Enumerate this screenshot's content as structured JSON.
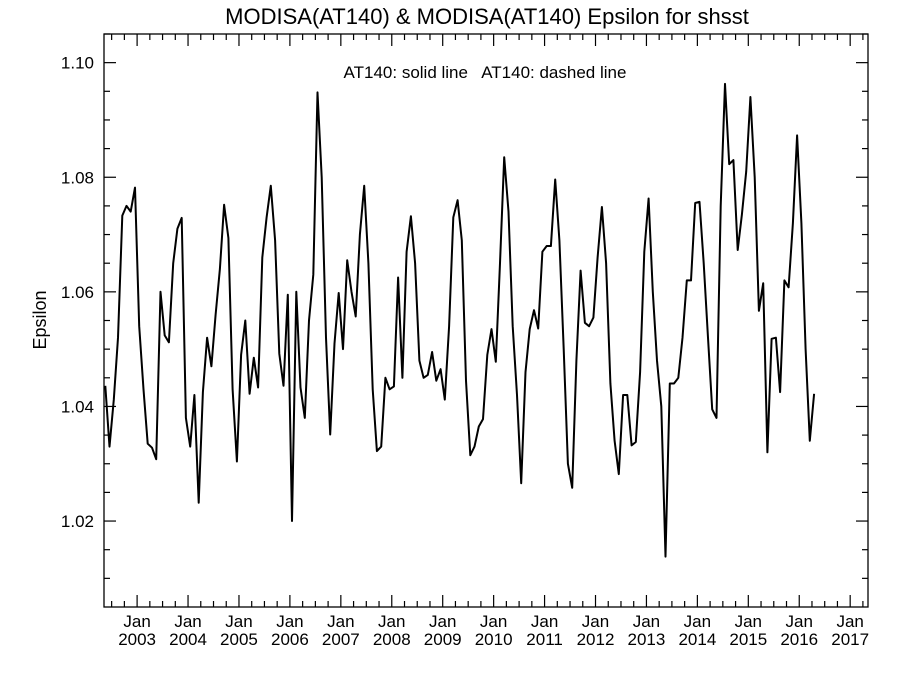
{
  "chart_data": {
    "type": "line",
    "title": "MODISA(AT140) & MODISA(AT140)  Epsilon for shsst",
    "xlabel": "",
    "ylabel": "Epsilon",
    "annotation": "AT140: solid line   AT140: dashed line",
    "xlim": [
      2002.35,
      2017.35
    ],
    "ylim": [
      1.005,
      1.105
    ],
    "yticks": [
      1.02,
      1.04,
      1.06,
      1.08,
      1.1
    ],
    "ytick_labels": [
      "1.02",
      "1.04",
      "1.06",
      "1.08",
      "1.10"
    ],
    "xticks": [
      2003,
      2004,
      2005,
      2006,
      2007,
      2008,
      2009,
      2010,
      2011,
      2012,
      2013,
      2014,
      2015,
      2016,
      2017
    ],
    "xtick_month_label": "Jan",
    "xtick_year_labels": [
      "2003",
      "2004",
      "2005",
      "2006",
      "2007",
      "2008",
      "2009",
      "2010",
      "2011",
      "2012",
      "2013",
      "2014",
      "2015",
      "2016",
      "2017"
    ],
    "grid": false,
    "series": [
      {
        "style": "solid",
        "x_start": 2002.375,
        "x_step": 0.083333,
        "values": [
          1.0436,
          1.033,
          1.0412,
          1.052,
          1.0733,
          1.075,
          1.074,
          1.0782,
          1.054,
          1.043,
          1.0335,
          1.0328,
          1.0308,
          1.06,
          1.0524,
          1.0512,
          1.065,
          1.071,
          1.0729,
          1.038,
          1.033,
          1.042,
          1.0232,
          1.0425,
          1.052,
          1.047,
          1.056,
          1.064,
          1.0752,
          1.0694,
          1.043,
          1.0304,
          1.049,
          1.055,
          1.0422,
          1.0485,
          1.0433,
          1.066,
          1.073,
          1.0785,
          1.069,
          1.0492,
          1.0436,
          1.0595,
          1.02,
          1.06,
          1.0433,
          1.038,
          1.055,
          1.063,
          1.0948,
          1.08,
          1.052,
          1.0351,
          1.051,
          1.0598,
          1.05,
          1.0655,
          1.06,
          1.0557,
          1.07,
          1.0785,
          1.065,
          1.043,
          1.0322,
          1.033,
          1.045,
          1.043,
          1.0435,
          1.0625,
          1.045,
          1.067,
          1.0732,
          1.065,
          1.048,
          1.045,
          1.0455,
          1.0495,
          1.0445,
          1.0465,
          1.0412,
          1.054,
          1.073,
          1.076,
          1.069,
          1.0445,
          1.0315,
          1.033,
          1.0365,
          1.0378,
          1.049,
          1.0535,
          1.0478,
          1.065,
          1.0835,
          1.074,
          1.054,
          1.042,
          1.0266,
          1.046,
          1.0535,
          1.0568,
          1.0536,
          1.067,
          1.068,
          1.068,
          1.0796,
          1.069,
          1.05,
          1.03,
          1.0258,
          1.048,
          1.0637,
          1.0546,
          1.054,
          1.0555,
          1.066,
          1.0748,
          1.065,
          1.044,
          1.034,
          1.0282,
          1.042,
          1.042,
          1.0332,
          1.0338,
          1.046,
          1.067,
          1.0763,
          1.06,
          1.048,
          1.04,
          1.0138,
          1.044,
          1.044,
          1.045,
          1.052,
          1.062,
          1.062,
          1.0755,
          1.0757,
          1.065,
          1.052,
          1.0395,
          1.038,
          1.075,
          1.0963,
          1.0823,
          1.083,
          1.0673,
          1.0735,
          1.081,
          1.094,
          1.08,
          1.0567,
          1.0615,
          1.032,
          1.0518,
          1.052,
          1.0425,
          1.062,
          1.0608,
          1.072,
          1.0873,
          1.072,
          1.05,
          1.034,
          1.0422
        ]
      }
    ]
  }
}
